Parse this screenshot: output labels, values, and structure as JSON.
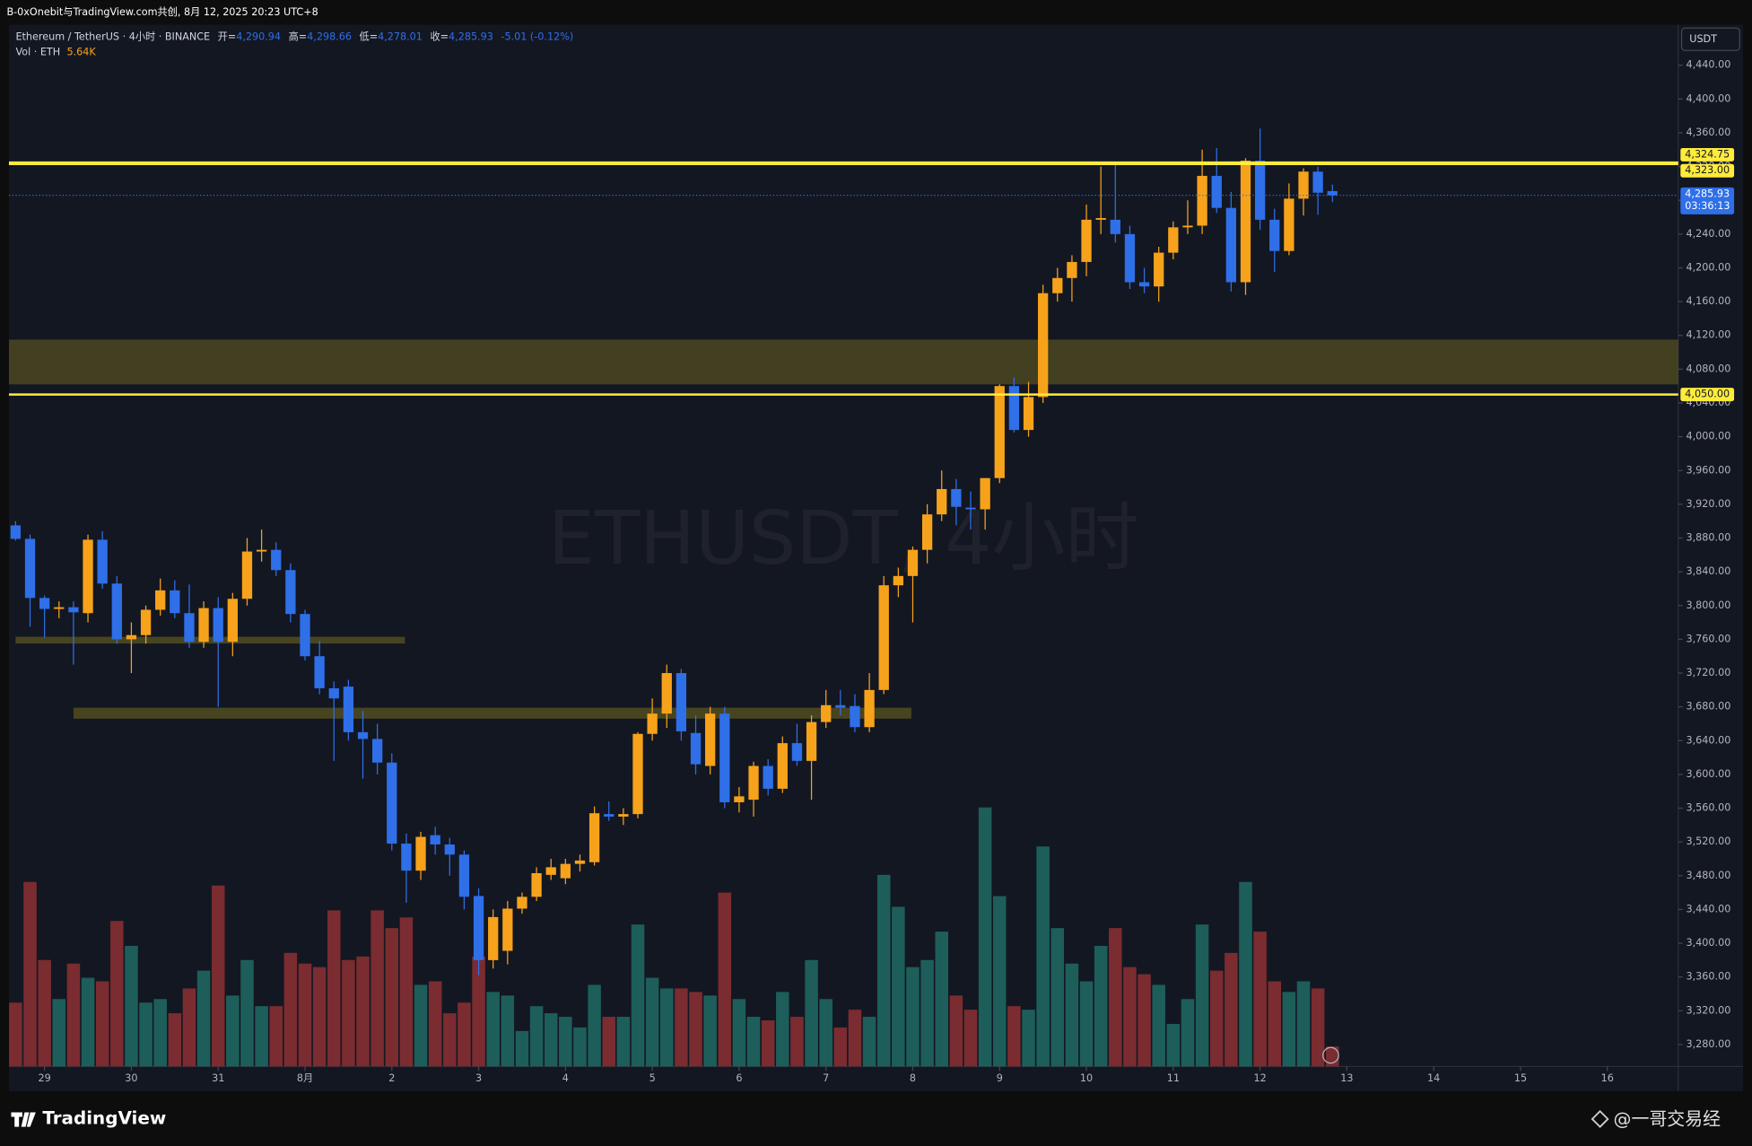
{
  "top_bar": {
    "text": "B-0xOnebit与TradingView.com共创, 8月 12, 2025 20:23 UTC+8"
  },
  "footer": {
    "brand": "TradingView",
    "credit": "@一哥交易经"
  },
  "chart_data": {
    "type": "candlestick",
    "title": "Ethereum / TetherUS · 4小时 · BINANCE",
    "watermark": "ETHUSDT, 4小时",
    "currency": "USDT",
    "ohlc_header": {
      "open_label": "开=",
      "open": "4,290.94",
      "high_label": "高=",
      "high": "4,298.66",
      "low_label": "低=",
      "low": "4,278.01",
      "close_label": "收=",
      "close": "4,285.93",
      "change": "-5.01 (-0.12%)"
    },
    "volume_header": {
      "label": "Vol · ETH",
      "value": "5.64K"
    },
    "up_color": "#f7a21b",
    "down_color": "#2f6fe8",
    "volume_up_color": "#1d5e5a",
    "volume_down_color": "#7a2c30",
    "candles": {
      "open": [
        3895,
        3879,
        3809,
        3796,
        3798,
        3791,
        3878,
        3826,
        3760,
        3765,
        3795,
        3818,
        3791,
        3757,
        3797,
        3757,
        3808,
        3864,
        3866,
        3842,
        3790,
        3740,
        3702,
        3704,
        3650,
        3642,
        3614,
        3518,
        3486,
        3528,
        3517,
        3505,
        3456,
        3380,
        3391,
        3441,
        3455,
        3481,
        3477,
        3494,
        3496,
        3553,
        3550,
        3553,
        3648,
        3672,
        3720,
        3649,
        3610,
        3672,
        3567,
        3570,
        3610,
        3583,
        3637,
        3616,
        3662,
        3682,
        3681,
        3656,
        3700,
        3824,
        3835,
        3866,
        3908,
        3938,
        3916,
        3914,
        3951,
        4060,
        4008,
        4047,
        4170,
        4188,
        4207,
        4257,
        4257,
        4240,
        4183,
        4178,
        4218,
        4248,
        4250,
        4309,
        4271,
        4183,
        4327,
        4257,
        4220,
        4282,
        4314,
        4290.94
      ],
      "high": [
        3900,
        3884,
        3812,
        3805,
        3805,
        3884,
        3888,
        3835,
        3780,
        3800,
        3832,
        3830,
        3825,
        3805,
        3810,
        3815,
        3880,
        3890,
        3875,
        3850,
        3795,
        3758,
        3710,
        3712,
        3675,
        3660,
        3625,
        3530,
        3532,
        3538,
        3525,
        3510,
        3465,
        3440,
        3450,
        3460,
        3490,
        3500,
        3500,
        3505,
        3562,
        3568,
        3560,
        3650,
        3690,
        3730,
        3725,
        3670,
        3680,
        3680,
        3585,
        3615,
        3618,
        3645,
        3660,
        3670,
        3700,
        3700,
        3695,
        3720,
        3835,
        3845,
        3870,
        3920,
        3960,
        3950,
        3935,
        3950,
        4062,
        4070,
        4065,
        4180,
        4200,
        4215,
        4275,
        4320,
        4325,
        4250,
        4200,
        4225,
        4255,
        4280,
        4340,
        4342,
        4290,
        4330,
        4365,
        4270,
        4300,
        4318,
        4320,
        4298.66
      ],
      "low": [
        3877,
        3775,
        3762,
        3785,
        3730,
        3780,
        3820,
        3755,
        3720,
        3755,
        3788,
        3785,
        3750,
        3750,
        3680,
        3740,
        3800,
        3852,
        3835,
        3780,
        3735,
        3695,
        3616,
        3640,
        3595,
        3600,
        3510,
        3448,
        3475,
        3505,
        3480,
        3440,
        3362,
        3370,
        3375,
        3435,
        3450,
        3475,
        3470,
        3485,
        3492,
        3545,
        3540,
        3548,
        3640,
        3655,
        3640,
        3600,
        3600,
        3560,
        3555,
        3550,
        3575,
        3578,
        3610,
        3570,
        3655,
        3670,
        3650,
        3650,
        3695,
        3810,
        3780,
        3850,
        3900,
        3895,
        3890,
        3890,
        3945,
        4005,
        4000,
        4040,
        4160,
        4160,
        4190,
        4240,
        4230,
        4175,
        4170,
        4160,
        4210,
        4240,
        4240,
        4265,
        4172,
        4168,
        4245,
        4195,
        4215,
        4262,
        4263,
        4278.01
      ],
      "close": [
        3879,
        3809,
        3796,
        3798,
        3792,
        3878,
        3826,
        3760,
        3765,
        3795,
        3818,
        3791,
        3757,
        3797,
        3757,
        3808,
        3864,
        3866,
        3842,
        3790,
        3740,
        3702,
        3690,
        3650,
        3642,
        3614,
        3518,
        3486,
        3526,
        3517,
        3505,
        3455,
        3380,
        3431,
        3441,
        3455,
        3483,
        3490,
        3494,
        3498,
        3554,
        3550,
        3553,
        3648,
        3672,
        3720,
        3651,
        3612,
        3672,
        3567,
        3574,
        3610,
        3583,
        3637,
        3616,
        3662,
        3682,
        3679,
        3656,
        3700,
        3824,
        3835,
        3866,
        3908,
        3938,
        3917,
        3914,
        3951,
        4060,
        4008,
        4047,
        4170,
        4188,
        4207,
        4257,
        4259,
        4240,
        4183,
        4178,
        4218,
        4248,
        4250,
        4309,
        4271,
        4183,
        4327,
        4257,
        4220,
        4282,
        4314,
        4289,
        4285.93
      ]
    },
    "volume": {
      "vlim": [
        0,
        80
      ],
      "values": [
        18,
        52,
        30,
        19,
        29,
        25,
        24,
        41,
        34,
        18,
        19,
        15,
        22,
        27,
        51,
        20,
        30,
        17,
        17,
        32,
        29,
        28,
        44,
        30,
        31,
        44,
        39,
        42,
        23,
        24,
        15,
        18,
        31,
        21,
        20,
        10,
        17,
        15,
        14,
        11,
        23,
        14,
        14,
        40,
        25,
        22,
        22,
        21,
        20,
        49,
        19,
        14,
        13,
        21,
        14,
        30,
        19,
        11,
        16,
        14,
        54,
        45,
        28,
        30,
        38,
        20,
        16,
        73,
        48,
        17,
        16,
        62,
        39,
        29,
        24,
        34,
        39,
        28,
        26,
        23,
        12,
        19,
        40,
        27,
        32,
        52,
        38,
        24,
        21,
        24,
        22,
        5.64
      ]
    },
    "levels": [
      {
        "value": 4324.75,
        "label": "4,324.75"
      },
      {
        "value": 4323,
        "label": "4,323.00"
      },
      {
        "value": 4050,
        "label": "4,050.00"
      }
    ],
    "zones": [
      {
        "from": 4062,
        "to": 4115,
        "x": [
          -0.46,
          114.9
        ]
      },
      {
        "from": 3755,
        "to": 3763,
        "x": [
          0,
          26.9
        ]
      },
      {
        "from": 3666,
        "to": 3679,
        "x": [
          4,
          61.9
        ]
      }
    ],
    "last_price": {
      "value": 4285.93,
      "label": "4,285.93",
      "countdown": "03:36:13"
    },
    "xlim": [
      -0.46,
      114.9
    ],
    "xticks": [
      {
        "value": 2,
        "label": "29"
      },
      {
        "value": 8,
        "label": "30"
      },
      {
        "value": 14,
        "label": "31"
      },
      {
        "value": 20,
        "label": "8月"
      },
      {
        "value": 26,
        "label": "2"
      },
      {
        "value": 32,
        "label": "3"
      },
      {
        "value": 38,
        "label": "4"
      },
      {
        "value": 44,
        "label": "5"
      },
      {
        "value": 50,
        "label": "6"
      },
      {
        "value": 56,
        "label": "7"
      },
      {
        "value": 62,
        "label": "8"
      },
      {
        "value": 68,
        "label": "9"
      },
      {
        "value": 74,
        "label": "10"
      },
      {
        "value": 80,
        "label": "11"
      },
      {
        "value": 86,
        "label": "12"
      },
      {
        "value": 92,
        "label": "13"
      },
      {
        "value": 98,
        "label": "14"
      },
      {
        "value": 104,
        "label": "15"
      },
      {
        "value": 110,
        "label": "16"
      }
    ],
    "ylim": [
      3254,
      4488
    ],
    "yticks": [
      {
        "value": 4440,
        "label": "4,440.00"
      },
      {
        "value": 4400,
        "label": "4,400.00"
      },
      {
        "value": 4360,
        "label": "4,360.00"
      },
      {
        "value": 4320,
        "label": "4,320.00"
      },
      {
        "value": 4280,
        "label": "4,280.00"
      },
      {
        "value": 4240,
        "label": "4,240.00"
      },
      {
        "value": 4200,
        "label": "4,200.00"
      },
      {
        "value": 4160,
        "label": "4,160.00"
      },
      {
        "value": 4120,
        "label": "4,120.00"
      },
      {
        "value": 4080,
        "label": "4,080.00"
      },
      {
        "value": 4040,
        "label": "4,040.00"
      },
      {
        "value": 4000,
        "label": "4,000.00"
      },
      {
        "value": 3960,
        "label": "3,960.00"
      },
      {
        "value": 3920,
        "label": "3,920.00"
      },
      {
        "value": 3880,
        "label": "3,880.00"
      },
      {
        "value": 3840,
        "label": "3,840.00"
      },
      {
        "value": 3800,
        "label": "3,800.00"
      },
      {
        "value": 3760,
        "label": "3,760.00"
      },
      {
        "value": 3720,
        "label": "3,720.00"
      },
      {
        "value": 3680,
        "label": "3,680.00"
      },
      {
        "value": 3640,
        "label": "3,640.00"
      },
      {
        "value": 3600,
        "label": "3,600.00"
      },
      {
        "value": 3560,
        "label": "3,560.00"
      },
      {
        "value": 3520,
        "label": "3,520.00"
      },
      {
        "value": 3480,
        "label": "3,480.00"
      },
      {
        "value": 3440,
        "label": "3,440.00"
      },
      {
        "value": 3400,
        "label": "3,400.00"
      },
      {
        "value": 3360,
        "label": "3,360.00"
      },
      {
        "value": 3320,
        "label": "3,320.00"
      },
      {
        "value": 3280,
        "label": "3,280.00"
      }
    ]
  }
}
